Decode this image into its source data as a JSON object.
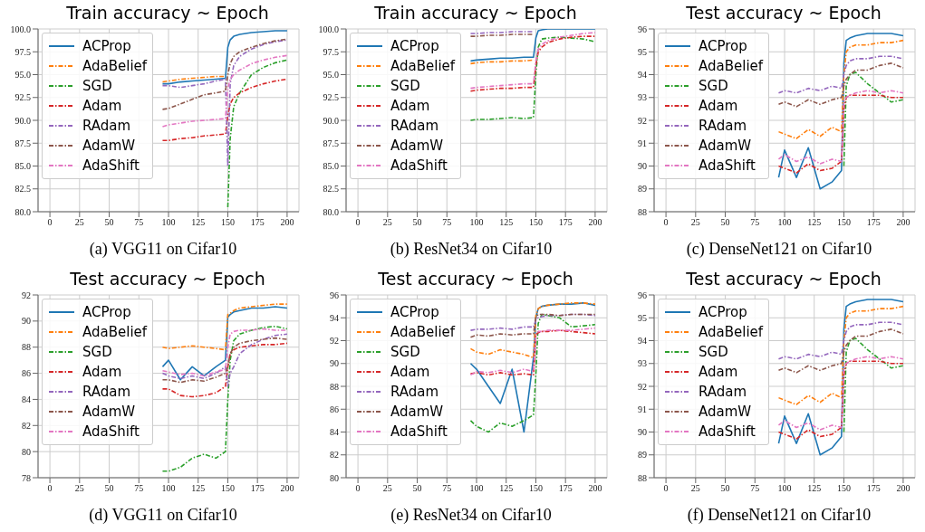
{
  "chart_data": [
    {
      "type": "line",
      "title": "Train accuracy ~  Epoch",
      "annotations": [
        "(a)  VGG11 on Cifar10"
      ],
      "xlim": [
        -10,
        210
      ],
      "xticks": [
        0,
        25,
        50,
        75,
        100,
        125,
        150,
        175,
        200
      ],
      "ylim": [
        80,
        100
      ],
      "yticks": [
        {
          "value": 80,
          "label": "80.0"
        },
        {
          "value": 82.5,
          "label": "82.5"
        },
        {
          "value": 85,
          "label": "85.0"
        },
        {
          "value": 87.5,
          "label": "87.5"
        },
        {
          "value": 90,
          "label": "90.0"
        },
        {
          "value": 92.5,
          "label": "92.5"
        },
        {
          "value": 95,
          "label": "95.0"
        },
        {
          "value": 97.5,
          "label": "97.5"
        },
        {
          "value": 100,
          "label": "100.0"
        }
      ],
      "grid": true,
      "legend": "top left",
      "marker": "none",
      "x": [
        95,
        100,
        110,
        120,
        130,
        140,
        148,
        150,
        152,
        155,
        160,
        170,
        180,
        190,
        200
      ],
      "series": [
        {
          "name": "ACProp",
          "color": "#1f77b4",
          "line_style": "solid",
          "values": [
            94,
            94,
            94.2,
            94.3,
            94.4,
            94.5,
            94.6,
            98,
            98.8,
            99.2,
            99.4,
            99.6,
            99.7,
            99.8,
            99.8
          ]
        },
        {
          "name": "AdaBelief",
          "color": "#ff7f0e",
          "line_style": "dashed",
          "values": [
            94.2,
            94.3,
            94.5,
            94.6,
            94.7,
            94.8,
            94.8,
            null,
            null,
            null,
            null,
            null,
            null,
            null,
            null
          ]
        },
        {
          "name": "SGD",
          "color": "#2ca02c",
          "line_style": "dashed",
          "values": [
            null,
            null,
            null,
            null,
            null,
            null,
            null,
            80.5,
            88,
            91.5,
            93,
            95,
            95.8,
            96.3,
            96.6
          ]
        },
        {
          "name": "Adam",
          "color": "#d62728",
          "line_style": "dashed",
          "values": [
            87.8,
            87.8,
            88,
            88.1,
            88.3,
            88.4,
            88.5,
            90.5,
            91.8,
            92.5,
            93,
            93.6,
            94,
            94.3,
            94.5
          ]
        },
        {
          "name": "RAdam",
          "color": "#9467bd",
          "line_style": "dashed",
          "values": [
            93.8,
            93.8,
            93.6,
            93.8,
            94,
            94.3,
            94.5,
            85,
            94,
            96,
            97,
            97.8,
            98.3,
            98.6,
            98.8
          ]
        },
        {
          "name": "AdamW",
          "color": "#8c564b",
          "line_style": "dashed",
          "values": [
            91.2,
            91.3,
            91.8,
            92.3,
            92.8,
            93,
            93.2,
            95,
            96.2,
            97,
            97.5,
            98,
            98.4,
            98.7,
            98.9
          ]
        },
        {
          "name": "AdaShift",
          "color": "#e377c2",
          "line_style": "dashed",
          "values": [
            89.3,
            89.5,
            89.7,
            89.9,
            90,
            90.1,
            90.2,
            93.5,
            94.5,
            95,
            95.5,
            96.2,
            96.6,
            96.9,
            97.1
          ]
        }
      ]
    },
    {
      "type": "line",
      "title": "Train accuracy ~  Epoch",
      "annotations": [
        "(b)  ResNet34 on Cifar10"
      ],
      "xlim": [
        -10,
        210
      ],
      "xticks": [
        0,
        25,
        50,
        75,
        100,
        125,
        150,
        175,
        200
      ],
      "ylim": [
        80,
        100
      ],
      "yticks": [
        {
          "value": 80,
          "label": "80.0"
        },
        {
          "value": 82.5,
          "label": "82.5"
        },
        {
          "value": 85,
          "label": "85.0"
        },
        {
          "value": 87.5,
          "label": "87.5"
        },
        {
          "value": 90,
          "label": "90.0"
        },
        {
          "value": 92.5,
          "label": "92.5"
        },
        {
          "value": 95,
          "label": "95.0"
        },
        {
          "value": 97.5,
          "label": "97.5"
        },
        {
          "value": 100,
          "label": "100.0"
        }
      ],
      "grid": true,
      "legend": "top left",
      "marker": "none",
      "x": [
        95,
        100,
        110,
        120,
        130,
        140,
        148,
        150,
        152,
        155,
        160,
        170,
        180,
        190,
        200
      ],
      "series": [
        {
          "name": "ACProp",
          "color": "#1f77b4",
          "line_style": "solid",
          "values": [
            96.5,
            96.6,
            96.7,
            96.8,
            96.8,
            96.9,
            96.9,
            99,
            99.8,
            99.9,
            100,
            100,
            100,
            100,
            100
          ]
        },
        {
          "name": "AdaBelief",
          "color": "#ff7f0e",
          "line_style": "dashed",
          "values": [
            96.2,
            96.3,
            96.4,
            96.4,
            96.5,
            96.5,
            96.6,
            null,
            null,
            null,
            null,
            null,
            null,
            null,
            null
          ]
        },
        {
          "name": "SGD",
          "color": "#2ca02c",
          "line_style": "dashed",
          "values": [
            90,
            90.1,
            90.1,
            90.2,
            90.3,
            90.2,
            90.3,
            95,
            98,
            98.9,
            99,
            99.1,
            99,
            98.9,
            98.6
          ]
        },
        {
          "name": "Adam",
          "color": "#d62728",
          "line_style": "dashed",
          "values": [
            93.2,
            93.3,
            93.4,
            93.5,
            93.5,
            93.6,
            93.6,
            96,
            97.5,
            98,
            98.5,
            98.9,
            99.1,
            99.2,
            99.2
          ]
        },
        {
          "name": "RAdam",
          "color": "#9467bd",
          "line_style": "dashed",
          "values": [
            99.5,
            99.5,
            99.6,
            99.6,
            99.7,
            99.7,
            99.7,
            null,
            null,
            null,
            null,
            null,
            null,
            null,
            null
          ]
        },
        {
          "name": "AdamW",
          "color": "#8c564b",
          "line_style": "dashed",
          "values": [
            99.2,
            99.2,
            99.3,
            99.3,
            99.4,
            99.4,
            99.4,
            null,
            null,
            null,
            null,
            null,
            null,
            null,
            null
          ]
        },
        {
          "name": "AdaShift",
          "color": "#e377c2",
          "line_style": "dashed",
          "values": [
            93.5,
            93.6,
            93.7,
            93.8,
            93.9,
            94,
            94,
            96.5,
            97.8,
            98.3,
            98.7,
            99.1,
            99.3,
            99.5,
            99.6
          ]
        }
      ]
    },
    {
      "type": "line",
      "title": "Test accuracy ~  Epoch",
      "annotations": [
        "(c)  DenseNet121 on Cifar10"
      ],
      "xlim": [
        -10,
        210
      ],
      "xticks": [
        0,
        25,
        50,
        75,
        100,
        125,
        150,
        175,
        200
      ],
      "ylim": [
        88,
        96
      ],
      "yticks": [
        88,
        89,
        90,
        91,
        92,
        93,
        94,
        95,
        96
      ],
      "grid": true,
      "legend": "top left",
      "marker": "none",
      "x": [
        95,
        100,
        110,
        120,
        130,
        140,
        148,
        150,
        152,
        155,
        160,
        170,
        180,
        190,
        200
      ],
      "series": [
        {
          "name": "ACProp",
          "color": "#1f77b4",
          "line_style": "solid",
          "values": [
            89.5,
            90.7,
            89.5,
            90.8,
            89,
            89.3,
            89.8,
            94.5,
            95.5,
            95.6,
            95.7,
            95.8,
            95.8,
            95.8,
            95.7
          ]
        },
        {
          "name": "AdaBelief",
          "color": "#ff7f0e",
          "line_style": "dashed",
          "values": [
            91.5,
            91.4,
            91.2,
            91.6,
            91.3,
            91.7,
            91.5,
            94,
            95,
            95.2,
            95.3,
            95.3,
            95.4,
            95.4,
            95.5
          ]
        },
        {
          "name": "SGD",
          "color": "#2ca02c",
          "line_style": "dashed",
          "values": [
            null,
            null,
            null,
            null,
            null,
            null,
            null,
            90,
            93.5,
            94,
            94.1,
            93.6,
            93.2,
            92.8,
            92.9
          ]
        },
        {
          "name": "Adam",
          "color": "#d62728",
          "line_style": "dashed",
          "values": [
            90,
            89.9,
            89.7,
            90.1,
            89.8,
            89.9,
            90.2,
            92.5,
            93,
            93.1,
            93.1,
            93.1,
            93.1,
            93,
            93
          ]
        },
        {
          "name": "RAdam",
          "color": "#9467bd",
          "line_style": "dashed",
          "values": [
            93.2,
            93.3,
            93.2,
            93.4,
            93.3,
            93.5,
            93.4,
            94,
            94.4,
            94.6,
            94.7,
            94.7,
            94.8,
            94.8,
            94.7
          ]
        },
        {
          "name": "AdamW",
          "color": "#8c564b",
          "line_style": "dashed",
          "values": [
            92.7,
            92.8,
            92.6,
            92.9,
            92.7,
            92.9,
            93,
            93.5,
            93.8,
            94,
            94.2,
            94.2,
            94.4,
            94.5,
            94.3
          ]
        },
        {
          "name": "AdaShift",
          "color": "#e377c2",
          "line_style": "dashed",
          "values": [
            90.3,
            90.5,
            90.2,
            90.4,
            90.1,
            90.3,
            90.2,
            92.8,
            93,
            93.1,
            93.2,
            93.3,
            93.2,
            93.3,
            93.2
          ]
        }
      ]
    },
    {
      "type": "line",
      "title": "Test accuracy ~  Epoch",
      "annotations": [
        "(d)  VGG11 on Cifar10"
      ],
      "xlim": [
        -10,
        210
      ],
      "xticks": [
        0,
        25,
        50,
        75,
        100,
        125,
        150,
        175,
        200
      ],
      "ylim": [
        78,
        92
      ],
      "yticks": [
        78,
        80,
        82,
        84,
        86,
        88,
        90,
        92
      ],
      "grid": true,
      "legend": "top left",
      "marker": "none",
      "x": [
        95,
        100,
        110,
        120,
        130,
        140,
        148,
        150,
        152,
        155,
        160,
        170,
        180,
        190,
        200
      ],
      "series": [
        {
          "name": "ACProp",
          "color": "#1f77b4",
          "line_style": "solid",
          "values": [
            86.5,
            87,
            85.5,
            86.5,
            85.8,
            86.5,
            87,
            90.3,
            90.5,
            90.7,
            90.8,
            91,
            91,
            91.1,
            91
          ]
        },
        {
          "name": "AdaBelief",
          "color": "#ff7f0e",
          "line_style": "dashed",
          "values": [
            88,
            87.9,
            88,
            88.1,
            88,
            87.9,
            87.8,
            90.5,
            90.6,
            90.8,
            91,
            91.1,
            91.2,
            91.3,
            91.3
          ]
        },
        {
          "name": "SGD",
          "color": "#2ca02c",
          "line_style": "dashed",
          "values": [
            78.5,
            78.5,
            78.8,
            79.5,
            79.8,
            79.5,
            80,
            84,
            87,
            88.5,
            89,
            89.3,
            89.5,
            89.6,
            89.4
          ]
        },
        {
          "name": "Adam",
          "color": "#d62728",
          "line_style": "dashed",
          "values": [
            84.8,
            84.8,
            84.3,
            84.2,
            84.3,
            84.5,
            85,
            86.5,
            87.5,
            87.8,
            88,
            88.1,
            88.2,
            88.2,
            88.3
          ]
        },
        {
          "name": "RAdam",
          "color": "#9467bd",
          "line_style": "dashed",
          "values": [
            86,
            85.8,
            85.6,
            85.8,
            85.6,
            86,
            86.5,
            85,
            86,
            86.5,
            87.5,
            88.2,
            88.6,
            88.9,
            89
          ]
        },
        {
          "name": "AdamW",
          "color": "#8c564b",
          "line_style": "dashed",
          "values": [
            85.5,
            85.5,
            85.3,
            85.5,
            85.4,
            85.7,
            86,
            86.5,
            87.5,
            88,
            88.3,
            88.5,
            88.6,
            88.7,
            88.6
          ]
        },
        {
          "name": "AdaShift",
          "color": "#e377c2",
          "line_style": "dashed",
          "values": [
            86.2,
            86.1,
            85.9,
            86,
            85.8,
            86.1,
            86.3,
            88,
            89,
            89.2,
            89.3,
            89.3,
            89.4,
            89.3,
            89.3
          ]
        }
      ]
    },
    {
      "type": "line",
      "title": "Test accuracy ~  Epoch",
      "annotations": [
        "(e)  ResNet34 on Cifar10"
      ],
      "xlim": [
        -10,
        210
      ],
      "xticks": [
        0,
        25,
        50,
        75,
        100,
        125,
        150,
        175,
        200
      ],
      "ylim": [
        80,
        96
      ],
      "yticks": [
        80,
        82,
        84,
        86,
        88,
        90,
        92,
        94,
        96
      ],
      "grid": true,
      "legend": "top left",
      "marker": "none",
      "x": [
        95,
        100,
        110,
        120,
        130,
        140,
        148,
        150,
        152,
        155,
        160,
        170,
        180,
        190,
        200
      ],
      "series": [
        {
          "name": "ACProp",
          "color": "#1f77b4",
          "line_style": "solid",
          "values": [
            90,
            89.5,
            88,
            86.5,
            89.5,
            84,
            90.5,
            94,
            94.8,
            95,
            95.1,
            95.2,
            95.2,
            95.3,
            95.1
          ]
        },
        {
          "name": "AdaBelief",
          "color": "#ff7f0e",
          "line_style": "dashed",
          "values": [
            91.3,
            91,
            90.8,
            91.2,
            91,
            90.8,
            90.5,
            94.2,
            94.8,
            95,
            95.1,
            95.2,
            95.3,
            95.3,
            95.2
          ]
        },
        {
          "name": "SGD",
          "color": "#2ca02c",
          "line_style": "dashed",
          "values": [
            85,
            84.5,
            84,
            84.8,
            84.5,
            85,
            85.5,
            89,
            93.5,
            94.3,
            94.2,
            94,
            93.2,
            93.3,
            93.4
          ]
        },
        {
          "name": "Adam",
          "color": "#d62728",
          "line_style": "dashed",
          "values": [
            89.1,
            89.2,
            89,
            89.2,
            89,
            89.1,
            89,
            92.5,
            92.7,
            92.8,
            92.8,
            92.9,
            92.8,
            92.7,
            92.6
          ]
        },
        {
          "name": "RAdam",
          "color": "#9467bd",
          "line_style": "dashed",
          "values": [
            92.9,
            93,
            93,
            93.1,
            93,
            93.2,
            93.2,
            93.8,
            94,
            94.1,
            94.2,
            94.2,
            94.3,
            94.3,
            94.2
          ]
        },
        {
          "name": "AdamW",
          "color": "#8c564b",
          "line_style": "dashed",
          "values": [
            92.3,
            92.5,
            92.4,
            92.6,
            92.5,
            92.6,
            92.6,
            94,
            94.3,
            94.3,
            94.3,
            94.2,
            94.3,
            94.3,
            94.3
          ]
        },
        {
          "name": "AdaShift",
          "color": "#e377c2",
          "line_style": "dashed",
          "values": [
            89,
            89.3,
            89.2,
            89.4,
            89.2,
            89.5,
            89.3,
            92.5,
            92.8,
            92.8,
            92.9,
            92.9,
            92.9,
            93,
            93.1
          ]
        }
      ]
    },
    {
      "type": "line",
      "title": "Test accuracy ~  Epoch",
      "annotations": [
        "(f)  DenseNet121 on Cifar10"
      ],
      "xlim": [
        -10,
        210
      ],
      "xticks": [
        0,
        25,
        50,
        75,
        100,
        125,
        150,
        175,
        200
      ],
      "ylim": [
        88,
        96
      ],
      "yticks": [
        88,
        89,
        90,
        91,
        92,
        93,
        94,
        95,
        96
      ],
      "grid": true,
      "legend": "top left",
      "marker": "none",
      "x": [
        95,
        100,
        110,
        120,
        130,
        140,
        148,
        150,
        152,
        155,
        160,
        170,
        180,
        190,
        200
      ],
      "series": [
        {
          "name": "ACProp",
          "color": "#1f77b4",
          "line_style": "solid",
          "values": [
            89.5,
            90.7,
            89.5,
            90.8,
            89,
            89.3,
            89.8,
            94.5,
            95.5,
            95.6,
            95.7,
            95.8,
            95.8,
            95.8,
            95.7
          ]
        },
        {
          "name": "AdaBelief",
          "color": "#ff7f0e",
          "line_style": "dashed",
          "values": [
            91.5,
            91.4,
            91.2,
            91.6,
            91.3,
            91.7,
            91.5,
            94,
            95,
            95.2,
            95.3,
            95.3,
            95.4,
            95.4,
            95.5
          ]
        },
        {
          "name": "SGD",
          "color": "#2ca02c",
          "line_style": "dashed",
          "values": [
            null,
            null,
            null,
            null,
            null,
            null,
            null,
            90,
            93.5,
            94,
            94.1,
            93.6,
            93.2,
            92.8,
            92.9
          ]
        },
        {
          "name": "Adam",
          "color": "#d62728",
          "line_style": "dashed",
          "values": [
            90,
            89.9,
            89.7,
            90.1,
            89.8,
            89.9,
            90.2,
            92.5,
            93,
            93.1,
            93.1,
            93.1,
            93.1,
            93,
            93
          ]
        },
        {
          "name": "RAdam",
          "color": "#9467bd",
          "line_style": "dashed",
          "values": [
            93.2,
            93.3,
            93.2,
            93.4,
            93.3,
            93.5,
            93.4,
            94,
            94.4,
            94.6,
            94.7,
            94.7,
            94.8,
            94.8,
            94.7
          ]
        },
        {
          "name": "AdamW",
          "color": "#8c564b",
          "line_style": "dashed",
          "values": [
            92.7,
            92.8,
            92.6,
            92.9,
            92.7,
            92.9,
            93,
            93.5,
            93.8,
            94,
            94.2,
            94.2,
            94.4,
            94.5,
            94.3
          ]
        },
        {
          "name": "AdaShift",
          "color": "#e377c2",
          "line_style": "dashed",
          "values": [
            90.3,
            90.5,
            90.2,
            90.4,
            90.1,
            90.3,
            90.2,
            92.8,
            93,
            93.1,
            93.2,
            93.3,
            93.2,
            93.3,
            93.2
          ]
        }
      ]
    }
  ]
}
